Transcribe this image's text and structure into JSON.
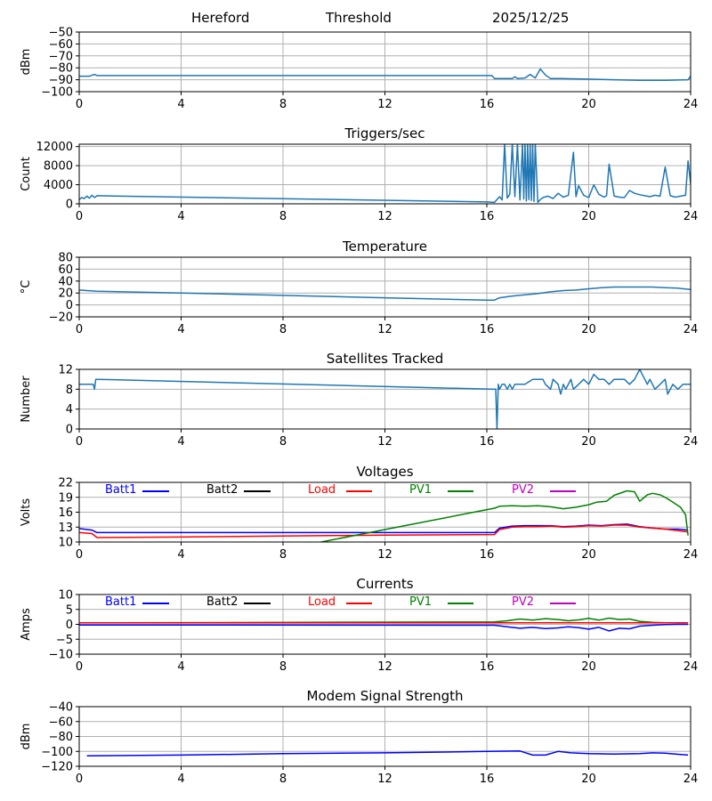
{
  "header": {
    "station": "Hereford",
    "mode": "Threshold",
    "date": "2025/12/25"
  },
  "colors": {
    "default_line": "#1f77b4",
    "grid": "#b0b0b0",
    "batt1": "#0000ff",
    "batt2": "#000000",
    "load": "#ff0000",
    "pv1": "#008000",
    "pv2": "#bf00bf",
    "modem": "#0000ff"
  },
  "legend_labels": [
    "Batt1",
    "Batt2",
    "Load",
    "PV1",
    "PV2"
  ],
  "chart_data": [
    {
      "id": "threshold",
      "type": "line",
      "title": "",
      "ylabel": "dBm",
      "xlim": [
        0,
        24
      ],
      "ylim": [
        -100,
        -50
      ],
      "xticks": [
        0,
        4,
        8,
        12,
        16,
        20,
        24
      ],
      "yticks": [
        -100,
        -90,
        -80,
        -70,
        -60,
        -50
      ],
      "series": [
        {
          "name": "threshold",
          "color_key": "default_line",
          "x": [
            0,
            0.4,
            0.6,
            0.7,
            16.2,
            16.3,
            17.0,
            17.1,
            17.2,
            17.5,
            17.7,
            17.9,
            18.1,
            18.3,
            18.5,
            19.0,
            20.0,
            21.0,
            22.0,
            23.0,
            23.9,
            24.0
          ],
          "y": [
            -87,
            -87,
            -85.5,
            -86.5,
            -86.5,
            -89,
            -89,
            -87.5,
            -89,
            -88.5,
            -85.5,
            -88.5,
            -81,
            -86,
            -89,
            -89,
            -89.5,
            -90,
            -90.5,
            -90.5,
            -90,
            -87
          ]
        }
      ]
    },
    {
      "id": "triggers",
      "type": "line",
      "title": "Triggers/sec",
      "ylabel": "Count",
      "xlim": [
        0,
        24
      ],
      "ylim": [
        0,
        12500
      ],
      "xticks": [
        0,
        4,
        8,
        12,
        16,
        20,
        24
      ],
      "yticks": [
        0,
        4000,
        8000,
        12000
      ],
      "series": [
        {
          "name": "triggers",
          "color_key": "default_line",
          "x": [
            0,
            0.1,
            0.2,
            0.3,
            0.4,
            0.5,
            0.6,
            0.7,
            16.0,
            16.3,
            16.5,
            16.6,
            16.7,
            16.8,
            16.9,
            17.0,
            17.1,
            17.2,
            17.3,
            17.4,
            17.45,
            17.5,
            17.55,
            17.6,
            17.65,
            17.7,
            17.75,
            17.8,
            17.85,
            17.9,
            18.0,
            18.1,
            18.2,
            18.4,
            18.6,
            18.8,
            19.0,
            19.2,
            19.4,
            19.5,
            19.6,
            19.8,
            20.0,
            20.2,
            20.4,
            20.6,
            20.7,
            20.8,
            21.0,
            21.2,
            21.4,
            21.6,
            21.8,
            22.0,
            22.2,
            22.4,
            22.6,
            22.8,
            23.0,
            23.2,
            23.4,
            23.6,
            23.8,
            23.9,
            24.0
          ],
          "y": [
            900,
            1300,
            1100,
            1600,
            1200,
            1800,
            1300,
            1700,
            400,
            300,
            1500,
            800,
            12500,
            1200,
            2000,
            12500,
            1500,
            12500,
            800,
            12500,
            1000,
            12500,
            600,
            12500,
            900,
            12500,
            700,
            12500,
            500,
            12500,
            300,
            900,
            1300,
            1600,
            1100,
            2200,
            1400,
            1800,
            10800,
            1500,
            3800,
            1800,
            1300,
            4000,
            2000,
            1400,
            1700,
            8300,
            1600,
            1400,
            1300,
            2800,
            2200,
            1900,
            1700,
            1500,
            1800,
            1600,
            7700,
            1700,
            1400,
            1600,
            1800,
            9000,
            4200
          ]
        }
      ]
    },
    {
      "id": "temperature",
      "type": "line",
      "title": "Temperature",
      "ylabel": "°C",
      "xlim": [
        0,
        24
      ],
      "ylim": [
        -20,
        80
      ],
      "xticks": [
        0,
        4,
        8,
        12,
        16,
        20,
        24
      ],
      "yticks": [
        -20,
        0,
        20,
        40,
        60,
        80
      ],
      "series": [
        {
          "name": "temperature",
          "color_key": "default_line",
          "x": [
            0,
            0.3,
            0.7,
            4,
            8,
            12,
            16,
            16.3,
            16.5,
            17,
            17.5,
            18,
            18.5,
            19,
            19.5,
            20,
            20.5,
            21,
            21.5,
            22,
            22.5,
            23,
            23.5,
            24
          ],
          "y": [
            25,
            24,
            23,
            20,
            16,
            12,
            8,
            8,
            12,
            15,
            17,
            19,
            22,
            24,
            25,
            27,
            29,
            30,
            30,
            30,
            30,
            29,
            28,
            26
          ]
        }
      ]
    },
    {
      "id": "satellites",
      "type": "line",
      "title": "Satellites Tracked",
      "ylabel": "Number",
      "xlim": [
        0,
        24
      ],
      "ylim": [
        0,
        12
      ],
      "xticks": [
        0,
        4,
        8,
        12,
        16,
        20,
        24
      ],
      "yticks": [
        0,
        4,
        8,
        12
      ],
      "series": [
        {
          "name": "satellites",
          "color_key": "default_line",
          "x": [
            0,
            0.55,
            0.6,
            0.65,
            0.7,
            16.2,
            16.35,
            16.4,
            16.45,
            16.5,
            16.6,
            16.7,
            16.8,
            16.9,
            17.0,
            17.1,
            17.5,
            17.8,
            18.2,
            18.3,
            18.5,
            18.6,
            18.8,
            18.9,
            19.0,
            19.1,
            19.3,
            19.4,
            19.6,
            19.8,
            20.0,
            20.2,
            20.4,
            20.6,
            20.8,
            21.0,
            21.2,
            21.4,
            21.6,
            21.8,
            22.0,
            22.1,
            22.2,
            22.3,
            22.4,
            22.6,
            22.8,
            23.0,
            23.1,
            23.3,
            23.5,
            23.7,
            23.9,
            24.0
          ],
          "y": [
            9,
            9,
            8,
            10,
            10,
            8,
            8,
            0,
            9,
            8,
            9,
            9,
            8,
            9,
            8,
            9,
            9,
            10,
            10,
            9,
            8,
            10,
            9,
            7,
            9,
            8,
            10,
            8,
            9,
            10,
            9,
            11,
            10,
            10,
            9,
            10,
            10,
            10,
            9,
            10,
            12,
            11,
            10,
            9,
            10,
            8,
            9,
            10,
            7,
            9,
            8,
            9,
            9,
            9
          ]
        }
      ]
    },
    {
      "id": "voltages",
      "type": "line",
      "title": "Voltages",
      "ylabel": "Volts",
      "xlim": [
        0,
        24
      ],
      "ylim": [
        10,
        22
      ],
      "xticks": [
        0,
        4,
        8,
        12,
        16,
        20,
        24
      ],
      "yticks": [
        10,
        13,
        16,
        19,
        22
      ],
      "legend": true,
      "series": [
        {
          "name": "Batt1",
          "color_key": "batt1",
          "x": [
            0,
            0.5,
            0.7,
            16.3,
            16.5,
            17,
            17.5,
            18,
            18.5,
            19,
            19.5,
            20,
            20.5,
            21,
            21.5,
            22,
            22.5,
            23,
            23.5,
            23.9
          ],
          "y": [
            12.7,
            12.4,
            11.9,
            11.9,
            12.8,
            13.2,
            13.3,
            13.3,
            13.3,
            13.1,
            13.2,
            13.4,
            13.3,
            13.5,
            13.6,
            13.1,
            12.8,
            12.6,
            12.6,
            12.4
          ]
        },
        {
          "name": "Load",
          "color_key": "load",
          "x": [
            0,
            0.5,
            0.7,
            4,
            8,
            12,
            16.3,
            16.5,
            17,
            17.5,
            18,
            18.5,
            19,
            19.5,
            20,
            20.5,
            21,
            21.5,
            22,
            22.5,
            23,
            23.5,
            23.9
          ],
          "y": [
            11.9,
            11.7,
            10.9,
            11,
            11.2,
            11.4,
            11.5,
            12.5,
            13,
            13.1,
            13.1,
            13.2,
            13,
            13.1,
            13.3,
            13.2,
            13.4,
            13.4,
            13,
            12.8,
            12.6,
            12.3,
            12
          ]
        },
        {
          "name": "PV1",
          "color_key": "pv1",
          "x": [
            9.5,
            12,
            16.3,
            16.5,
            17,
            17.5,
            18,
            18.5,
            19,
            19.5,
            20,
            20.3,
            20.7,
            21,
            21.5,
            21.8,
            22.0,
            22.3,
            22.5,
            22.8,
            23.0,
            23.3,
            23.6,
            23.8,
            23.9
          ],
          "y": [
            10,
            12.5,
            16.8,
            17.2,
            17.3,
            17.2,
            17.3,
            17.1,
            16.7,
            17,
            17.5,
            18,
            18.2,
            19.4,
            20.3,
            20.1,
            18.2,
            19.5,
            19.8,
            19.5,
            19.0,
            18.0,
            17.0,
            15.5,
            11.3
          ]
        }
      ]
    },
    {
      "id": "currents",
      "type": "line",
      "title": "Currents",
      "ylabel": "Amps",
      "xlim": [
        0,
        24
      ],
      "ylim": [
        -10,
        10
      ],
      "xticks": [
        0,
        4,
        8,
        12,
        16,
        20,
        24
      ],
      "yticks": [
        -10,
        -5,
        0,
        5,
        10
      ],
      "legend": true,
      "series": [
        {
          "name": "PV1",
          "color_key": "pv1",
          "x": [
            0,
            16.3,
            16.8,
            17.3,
            17.8,
            18.3,
            18.8,
            19.2,
            19.6,
            20.0,
            20.4,
            20.8,
            21.2,
            21.6,
            22.0,
            22.5,
            23.0,
            23.5,
            23.9
          ],
          "y": [
            0.5,
            0.8,
            1.2,
            1.8,
            1.4,
            1.9,
            1.6,
            1.2,
            1.5,
            2.0,
            1.4,
            2.1,
            1.6,
            1.8,
            1.0,
            0.7,
            0.5,
            0.5,
            0.5
          ]
        },
        {
          "name": "Load",
          "color_key": "load",
          "x": [
            0,
            23.9
          ],
          "y": [
            0.5,
            0.5
          ]
        },
        {
          "name": "Batt1",
          "color_key": "batt1",
          "x": [
            0,
            16.3,
            16.8,
            17.3,
            17.8,
            18.3,
            18.8,
            19.2,
            19.6,
            20.0,
            20.4,
            20.8,
            21.2,
            21.6,
            22.0,
            22.5,
            23.0,
            23.5,
            23.9
          ],
          "y": [
            -0.2,
            -0.3,
            -0.8,
            -1.3,
            -1.0,
            -1.4,
            -1.2,
            -0.8,
            -1.1,
            -1.6,
            -1.0,
            -2.2,
            -1.3,
            -1.5,
            -0.6,
            -0.3,
            -0.1,
            0.0,
            0.0
          ]
        }
      ]
    },
    {
      "id": "modem",
      "type": "line",
      "title": "Modem Signal Strength",
      "ylabel": "dBm",
      "xlim": [
        0,
        24
      ],
      "ylim": [
        -120,
        -40
      ],
      "xticks": [
        0,
        4,
        8,
        12,
        16,
        20,
        24
      ],
      "yticks": [
        -120,
        -100,
        -80,
        -60,
        -40
      ],
      "series": [
        {
          "name": "modem",
          "color_key": "modem",
          "x": [
            0.3,
            4,
            8,
            12,
            16,
            17.3,
            17.8,
            18.3,
            18.8,
            19.3,
            20.0,
            21.0,
            22.0,
            22.5,
            23.0,
            23.9
          ],
          "y": [
            -106,
            -105,
            -103,
            -102,
            -100,
            -99.5,
            -105,
            -105,
            -100,
            -102,
            -103,
            -103.5,
            -103,
            -102,
            -102.5,
            -105
          ]
        }
      ]
    }
  ]
}
